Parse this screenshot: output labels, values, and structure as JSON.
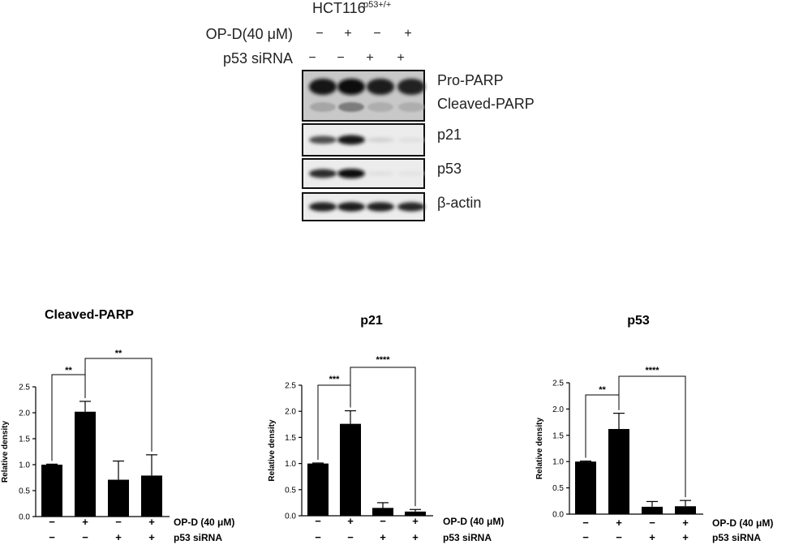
{
  "blot": {
    "cell_line": "HCT116",
    "cell_line_sup": "p53+/+",
    "conditions": [
      {
        "label": "OP-D(40 μM)",
        "signs": [
          "−",
          "+",
          "−",
          "+"
        ]
      },
      {
        "label": "p53 siRNA",
        "signs": [
          "−",
          "−",
          "+",
          "+"
        ]
      }
    ],
    "panels": [
      {
        "labels": [
          "Pro-PARP",
          "Cleaved-PARP"
        ],
        "bands": [
          0.95,
          0.98,
          0.92,
          0.9
        ],
        "sub_bands": [
          0.35,
          0.6,
          0.3,
          0.3
        ]
      },
      {
        "labels": [
          "p21"
        ],
        "bands": [
          0.7,
          0.95,
          0.12,
          0.06
        ]
      },
      {
        "labels": [
          "p53"
        ],
        "bands": [
          0.85,
          0.98,
          0.06,
          0.04
        ]
      },
      {
        "labels": [
          "β-actin"
        ],
        "bands": [
          0.9,
          0.92,
          0.9,
          0.88
        ]
      }
    ]
  },
  "chart_data": [
    {
      "type": "bar",
      "title": "Cleaved-PARP",
      "ylabel": "Relative density",
      "ylim": [
        0,
        2.5
      ],
      "yticks": [
        "0.0",
        "0.5",
        "1.0",
        "1.5",
        "2.0",
        "2.5"
      ],
      "categories": [
        "1",
        "2",
        "3",
        "4"
      ],
      "values": [
        1.0,
        2.02,
        0.71,
        0.79
      ],
      "errors": [
        0.01,
        0.2,
        0.36,
        0.4
      ],
      "row_labels": [
        "OP-D (40 μM)",
        "p53 siRNA"
      ],
      "row_signs": [
        [
          "−",
          "+",
          "−",
          "+"
        ],
        [
          "−",
          "−",
          "+",
          "+"
        ]
      ],
      "significance": [
        {
          "from": 0,
          "to": 1,
          "label": "**"
        },
        {
          "from": 1,
          "to": 3,
          "label": "**"
        }
      ]
    },
    {
      "type": "bar",
      "title": "p21",
      "ylabel": "Relative density",
      "ylim": [
        0,
        2.5
      ],
      "yticks": [
        "0.0",
        "0.5",
        "1.0",
        "1.5",
        "2.0",
        "2.5"
      ],
      "categories": [
        "1",
        "2",
        "3",
        "4"
      ],
      "values": [
        1.0,
        1.76,
        0.15,
        0.08
      ],
      "errors": [
        0.01,
        0.25,
        0.1,
        0.04
      ],
      "row_labels": [
        "OP-D (40 μM)",
        "p53 siRNA"
      ],
      "row_signs": [
        [
          "−",
          "+",
          "−",
          "+"
        ],
        [
          "−",
          "−",
          "+",
          "+"
        ]
      ],
      "significance": [
        {
          "from": 0,
          "to": 1,
          "label": "***"
        },
        {
          "from": 1,
          "to": 3,
          "label": "****"
        }
      ]
    },
    {
      "type": "bar",
      "title": "p53",
      "ylabel": "Relative density",
      "ylim": [
        0,
        2.5
      ],
      "yticks": [
        "0.0",
        "0.5",
        "1.0",
        "1.5",
        "2.0",
        "2.5"
      ],
      "categories": [
        "1",
        "2",
        "3",
        "4"
      ],
      "values": [
        1.0,
        1.62,
        0.14,
        0.15
      ],
      "errors": [
        0.01,
        0.3,
        0.1,
        0.11
      ],
      "row_labels": [
        "OP-D (40 μM)",
        "p53 siRNA"
      ],
      "row_signs": [
        [
          "−",
          "+",
          "−",
          "+"
        ],
        [
          "−",
          "−",
          "+",
          "+"
        ]
      ],
      "significance": [
        {
          "from": 0,
          "to": 1,
          "label": "**"
        },
        {
          "from": 1,
          "to": 3,
          "label": "****"
        }
      ]
    }
  ]
}
